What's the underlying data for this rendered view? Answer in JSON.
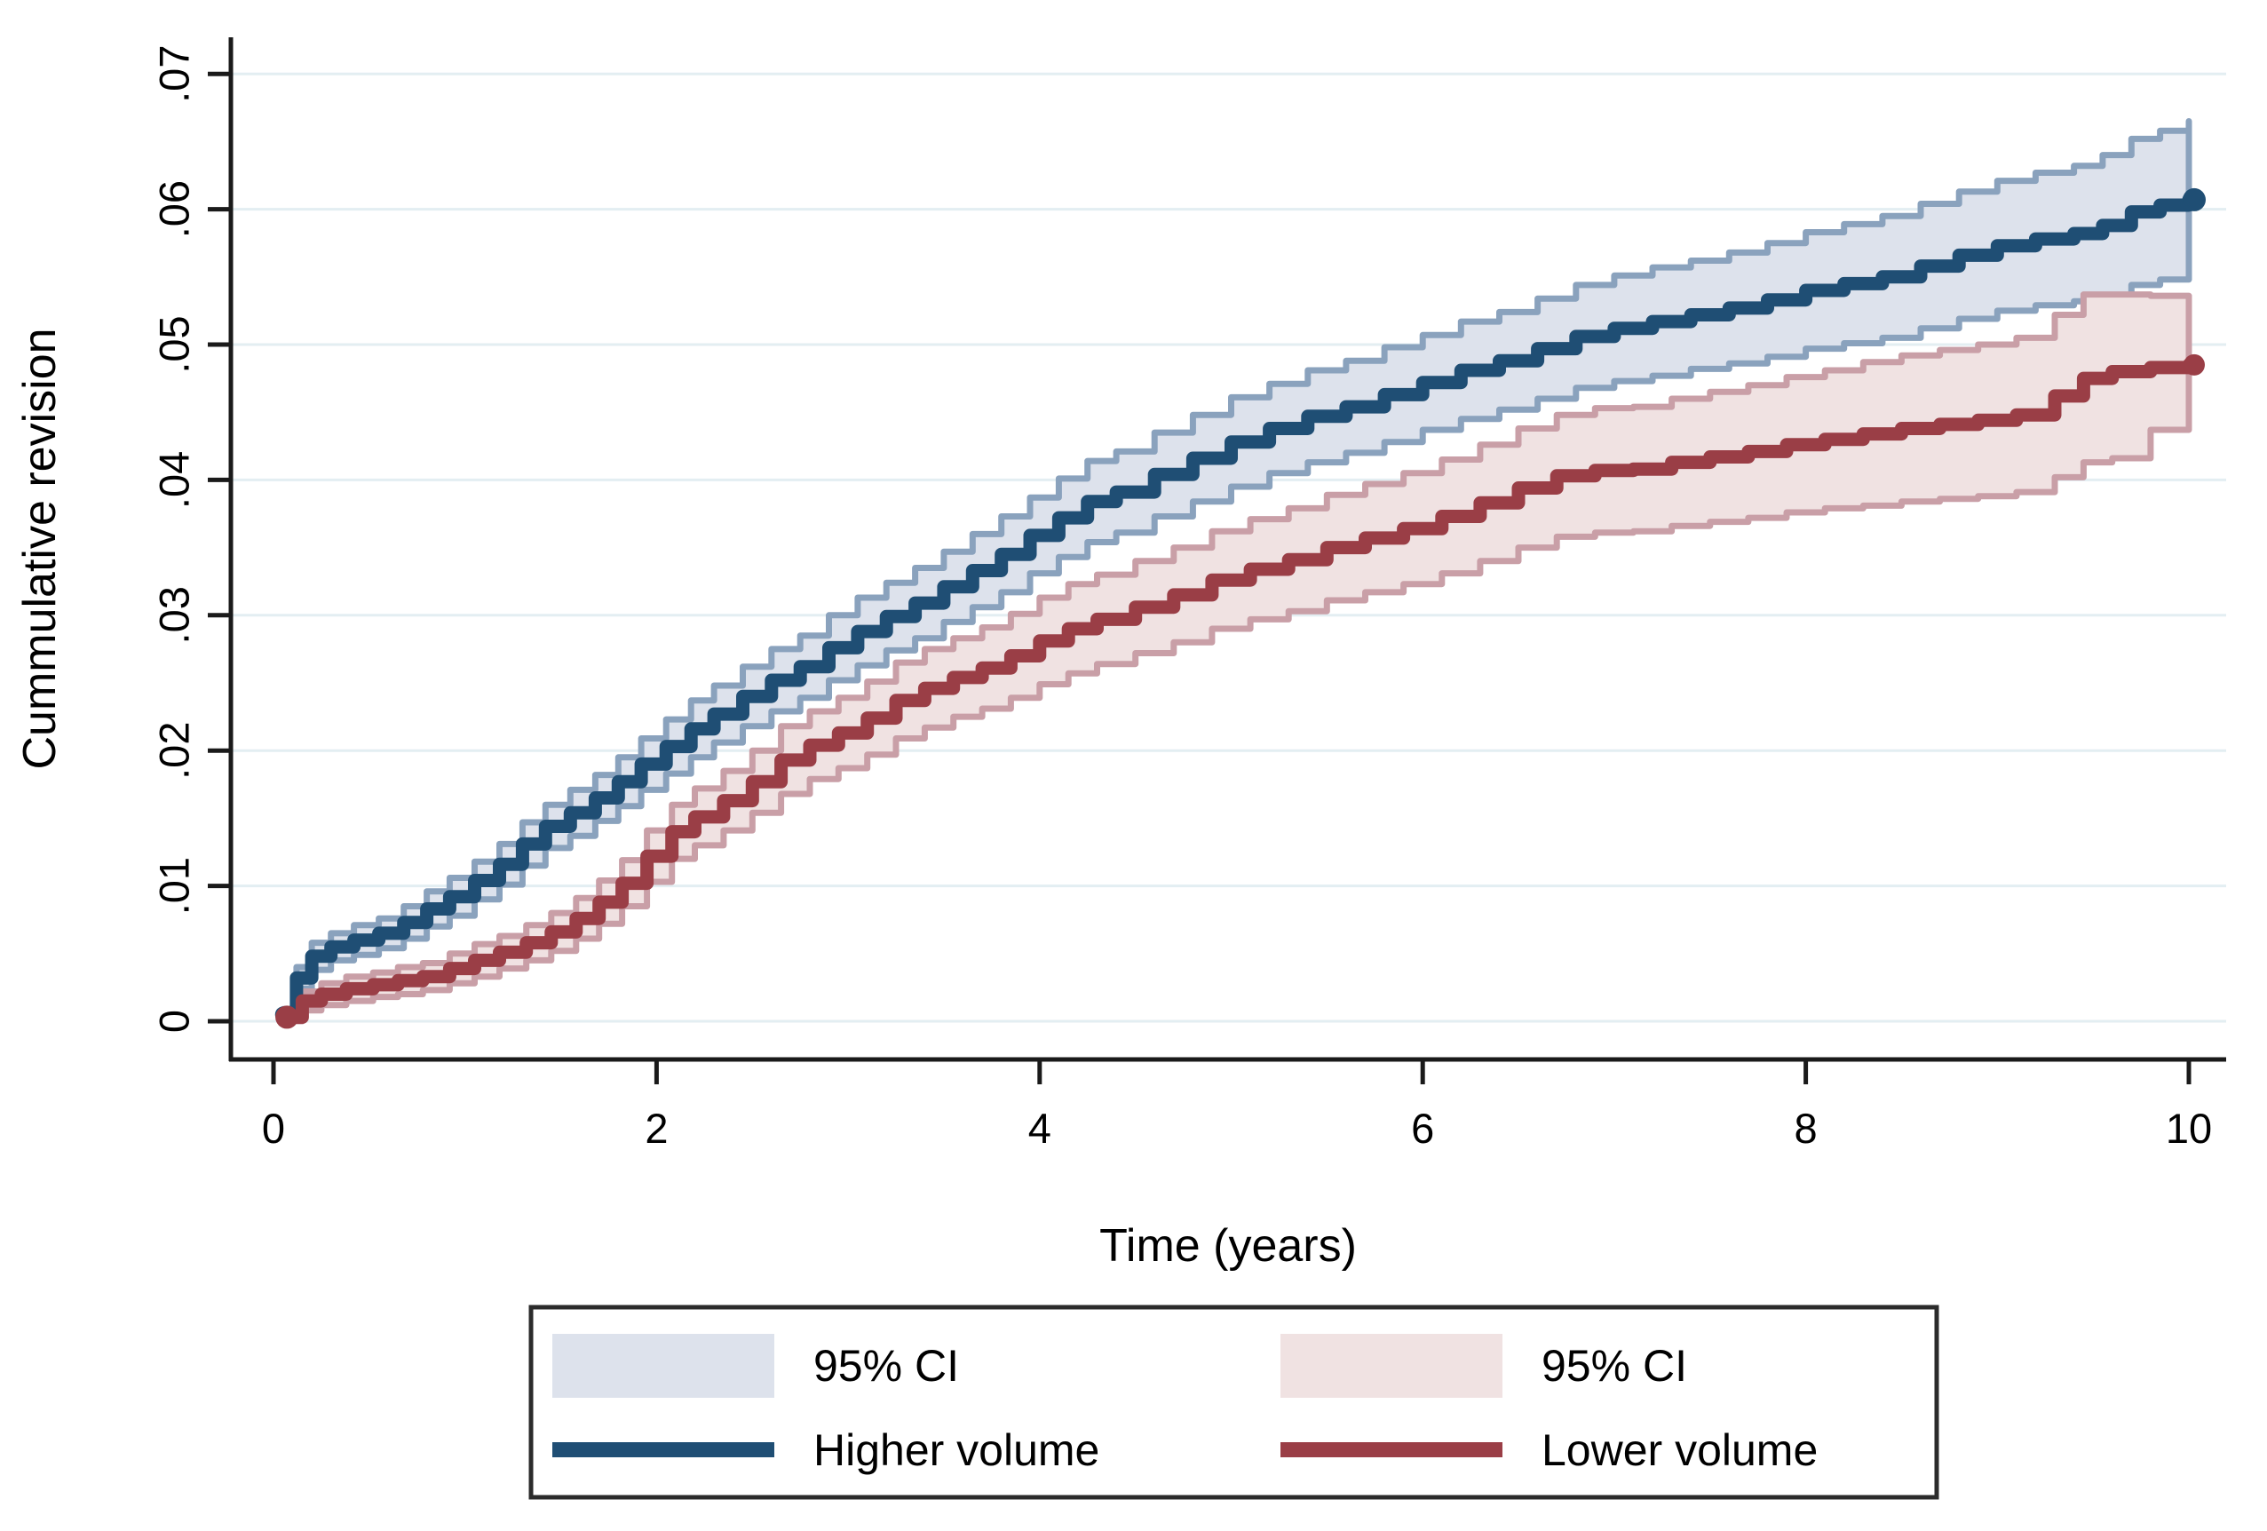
{
  "figure": {
    "background": "#ffffff",
    "y_axis": {
      "title": "Cummulative revision",
      "tick_labels": [
        "0",
        ".01",
        ".02",
        ".03",
        ".04",
        ".05",
        ".06",
        ".07"
      ],
      "tick_values": [
        0,
        0.01,
        0.02,
        0.03,
        0.04,
        0.05,
        0.06,
        0.07
      ]
    },
    "x_axis": {
      "title": "Time (years)",
      "tick_labels": [
        "0",
        "2",
        "4",
        "6",
        "8",
        "10"
      ],
      "tick_values": [
        0,
        2,
        4,
        6,
        8,
        10
      ]
    },
    "legend": {
      "entries": [
        {
          "label": "95% CI",
          "swatch": "fill",
          "color": "#dde2ec",
          "series": "Higher volume"
        },
        {
          "label": "95% CI",
          "swatch": "fill",
          "color": "#f0e2e2",
          "series": "Lower volume"
        },
        {
          "label": "Higher volume",
          "swatch": "line",
          "color": "#1f4e74"
        },
        {
          "label": "Lower volume",
          "swatch": "line",
          "color": "#9a3e46"
        }
      ]
    }
  },
  "colors": {
    "higher_line": "#1f4e74",
    "higher_ci_fill": "#dde2ec",
    "higher_ci_edge": "#8aa2bd",
    "lower_line": "#9a3e46",
    "lower_ci_fill": "#f0e2e2",
    "lower_ci_edge": "#c99fa7",
    "gridline": "#e3eef2",
    "axis": "#1a1a1a",
    "legend_border": "#2b2b2b"
  },
  "chart_data": {
    "type": "line",
    "subtype": "step-cumulative-incidence-with-ci",
    "title": "",
    "xlabel": "Time (years)",
    "ylabel": "Cummulative revision",
    "xlim": [
      0,
      10
    ],
    "ylim": [
      0,
      0.07
    ],
    "grid": true,
    "legend_position": "bottom",
    "point_format": [
      "time_years",
      "value",
      "ci_lower",
      "ci_upper"
    ],
    "series": [
      {
        "name": "Higher volume",
        "ci_label": "95% CI",
        "points": [
          [
            0.05,
            0.0005,
            0.0001,
            0.0009
          ],
          [
            0.12,
            0.0032,
            0.0024,
            0.004
          ],
          [
            0.2,
            0.0048,
            0.0038,
            0.0058
          ],
          [
            0.3,
            0.0055,
            0.0045,
            0.0065
          ],
          [
            0.42,
            0.006,
            0.0049,
            0.0071
          ],
          [
            0.55,
            0.0065,
            0.0054,
            0.0076
          ],
          [
            0.68,
            0.0073,
            0.0061,
            0.0085
          ],
          [
            0.8,
            0.0083,
            0.007,
            0.0096
          ],
          [
            0.92,
            0.0092,
            0.0078,
            0.0106
          ],
          [
            1.05,
            0.0104,
            0.009,
            0.0118
          ],
          [
            1.18,
            0.0116,
            0.0101,
            0.0131
          ],
          [
            1.3,
            0.0131,
            0.0115,
            0.0147
          ],
          [
            1.42,
            0.0144,
            0.0128,
            0.016
          ],
          [
            1.55,
            0.0154,
            0.0137,
            0.0171
          ],
          [
            1.68,
            0.0165,
            0.0148,
            0.0182
          ],
          [
            1.8,
            0.0177,
            0.0159,
            0.0195
          ],
          [
            1.92,
            0.019,
            0.0171,
            0.0209
          ],
          [
            2.05,
            0.0203,
            0.0183,
            0.0223
          ],
          [
            2.18,
            0.0216,
            0.0195,
            0.0237
          ],
          [
            2.3,
            0.0227,
            0.0206,
            0.0248
          ],
          [
            2.45,
            0.024,
            0.0218,
            0.0262
          ],
          [
            2.6,
            0.0252,
            0.0229,
            0.0275
          ],
          [
            2.75,
            0.0262,
            0.0239,
            0.0285
          ],
          [
            2.9,
            0.0276,
            0.0252,
            0.03
          ],
          [
            3.05,
            0.0288,
            0.0263,
            0.0313
          ],
          [
            3.2,
            0.0299,
            0.0274,
            0.0324
          ],
          [
            3.35,
            0.0309,
            0.0283,
            0.0335
          ],
          [
            3.5,
            0.0321,
            0.0295,
            0.0347
          ],
          [
            3.65,
            0.0333,
            0.0306,
            0.036
          ],
          [
            3.8,
            0.0345,
            0.0317,
            0.0373
          ],
          [
            3.95,
            0.0359,
            0.0331,
            0.0387
          ],
          [
            4.1,
            0.0372,
            0.0343,
            0.0401
          ],
          [
            4.25,
            0.0384,
            0.0354,
            0.0414
          ],
          [
            4.4,
            0.0391,
            0.0361,
            0.0421
          ],
          [
            4.6,
            0.0404,
            0.0373,
            0.0435
          ],
          [
            4.8,
            0.0416,
            0.0384,
            0.0448
          ],
          [
            5.0,
            0.0428,
            0.0395,
            0.0461
          ],
          [
            5.2,
            0.0438,
            0.0405,
            0.0471
          ],
          [
            5.4,
            0.0447,
            0.0413,
            0.0481
          ],
          [
            5.6,
            0.0454,
            0.042,
            0.0488
          ],
          [
            5.8,
            0.0463,
            0.0428,
            0.0498
          ],
          [
            6.0,
            0.0472,
            0.0437,
            0.0507
          ],
          [
            6.2,
            0.0481,
            0.0445,
            0.0517
          ],
          [
            6.4,
            0.0488,
            0.0452,
            0.0524
          ],
          [
            6.6,
            0.0497,
            0.046,
            0.0534
          ],
          [
            6.8,
            0.0506,
            0.0468,
            0.0544
          ],
          [
            7.0,
            0.0512,
            0.0473,
            0.0551
          ],
          [
            7.2,
            0.0517,
            0.0477,
            0.0557
          ],
          [
            7.4,
            0.0522,
            0.0482,
            0.0562
          ],
          [
            7.6,
            0.0527,
            0.0486,
            0.0568
          ],
          [
            7.8,
            0.0533,
            0.0491,
            0.0575
          ],
          [
            8.0,
            0.054,
            0.0497,
            0.0583
          ],
          [
            8.2,
            0.0545,
            0.0501,
            0.0589
          ],
          [
            8.4,
            0.055,
            0.0505,
            0.0595
          ],
          [
            8.6,
            0.0558,
            0.0512,
            0.0604
          ],
          [
            8.8,
            0.0566,
            0.0519,
            0.0613
          ],
          [
            9.0,
            0.0573,
            0.0525,
            0.0621
          ],
          [
            9.2,
            0.0578,
            0.0529,
            0.0627
          ],
          [
            9.4,
            0.0582,
            0.0532,
            0.0632
          ],
          [
            9.55,
            0.0588,
            0.0536,
            0.064
          ],
          [
            9.7,
            0.0598,
            0.0544,
            0.0652
          ],
          [
            9.85,
            0.0603,
            0.0548,
            0.0658
          ],
          [
            10.0,
            0.0607,
            0.0551,
            0.0665
          ]
        ]
      },
      {
        "name": "Lower volume",
        "ci_label": "95% CI",
        "points": [
          [
            0.07,
            0.0003,
            0.0,
            0.0006
          ],
          [
            0.15,
            0.0015,
            0.0008,
            0.0022
          ],
          [
            0.25,
            0.002,
            0.0012,
            0.0028
          ],
          [
            0.38,
            0.0024,
            0.0015,
            0.0033
          ],
          [
            0.52,
            0.0027,
            0.0018,
            0.0036
          ],
          [
            0.65,
            0.003,
            0.002,
            0.004
          ],
          [
            0.78,
            0.0033,
            0.0023,
            0.0043
          ],
          [
            0.92,
            0.0039,
            0.0028,
            0.005
          ],
          [
            1.05,
            0.0045,
            0.0033,
            0.0057
          ],
          [
            1.18,
            0.0051,
            0.0039,
            0.0063
          ],
          [
            1.32,
            0.0058,
            0.0045,
            0.0071
          ],
          [
            1.45,
            0.0066,
            0.0052,
            0.008
          ],
          [
            1.58,
            0.0076,
            0.0061,
            0.0091
          ],
          [
            1.7,
            0.0088,
            0.0072,
            0.0104
          ],
          [
            1.82,
            0.0102,
            0.0085,
            0.0119
          ],
          [
            1.95,
            0.0122,
            0.0103,
            0.0141
          ],
          [
            2.08,
            0.014,
            0.012,
            0.016
          ],
          [
            2.2,
            0.0151,
            0.013,
            0.0172
          ],
          [
            2.35,
            0.0163,
            0.0141,
            0.0185
          ],
          [
            2.5,
            0.0177,
            0.0154,
            0.02
          ],
          [
            2.65,
            0.0193,
            0.0168,
            0.0218
          ],
          [
            2.8,
            0.0204,
            0.0179,
            0.0229
          ],
          [
            2.95,
            0.0213,
            0.0187,
            0.0239
          ],
          [
            3.1,
            0.0224,
            0.0197,
            0.0251
          ],
          [
            3.25,
            0.0237,
            0.0209,
            0.0265
          ],
          [
            3.4,
            0.0246,
            0.0217,
            0.0275
          ],
          [
            3.55,
            0.0254,
            0.0225,
            0.0283
          ],
          [
            3.7,
            0.0261,
            0.0231,
            0.0291
          ],
          [
            3.85,
            0.027,
            0.0239,
            0.0301
          ],
          [
            4.0,
            0.0281,
            0.0249,
            0.0313
          ],
          [
            4.15,
            0.029,
            0.0257,
            0.0323
          ],
          [
            4.3,
            0.0297,
            0.0264,
            0.033
          ],
          [
            4.5,
            0.0306,
            0.0272,
            0.034
          ],
          [
            4.7,
            0.0315,
            0.028,
            0.035
          ],
          [
            4.9,
            0.0326,
            0.029,
            0.0362
          ],
          [
            5.1,
            0.0334,
            0.0297,
            0.0371
          ],
          [
            5.3,
            0.0341,
            0.0303,
            0.0379
          ],
          [
            5.5,
            0.035,
            0.0311,
            0.0389
          ],
          [
            5.7,
            0.0357,
            0.0317,
            0.0397
          ],
          [
            5.9,
            0.0364,
            0.0323,
            0.0405
          ],
          [
            6.1,
            0.0373,
            0.0331,
            0.0415
          ],
          [
            6.3,
            0.0383,
            0.034,
            0.0426
          ],
          [
            6.5,
            0.0394,
            0.035,
            0.0438
          ],
          [
            6.7,
            0.0403,
            0.0358,
            0.0448
          ],
          [
            6.9,
            0.0407,
            0.0361,
            0.0453
          ],
          [
            7.1,
            0.0408,
            0.0362,
            0.0454
          ],
          [
            7.3,
            0.0413,
            0.0366,
            0.046
          ],
          [
            7.5,
            0.0417,
            0.0369,
            0.0465
          ],
          [
            7.7,
            0.0421,
            0.0372,
            0.047
          ],
          [
            7.9,
            0.0426,
            0.0376,
            0.0476
          ],
          [
            8.1,
            0.043,
            0.0379,
            0.0481
          ],
          [
            8.3,
            0.0434,
            0.0381,
            0.0487
          ],
          [
            8.5,
            0.0438,
            0.0384,
            0.0492
          ],
          [
            8.7,
            0.0441,
            0.0386,
            0.0496
          ],
          [
            8.9,
            0.0444,
            0.0388,
            0.05
          ],
          [
            9.1,
            0.0448,
            0.0391,
            0.0505
          ],
          [
            9.3,
            0.0462,
            0.0402,
            0.0522
          ],
          [
            9.45,
            0.0475,
            0.0413,
            0.0537
          ],
          [
            9.6,
            0.048,
            0.0416,
            0.0537
          ],
          [
            9.8,
            0.0483,
            0.0437,
            0.0536
          ],
          [
            10.0,
            0.0485,
            0.0438,
            0.0535
          ]
        ]
      }
    ]
  }
}
